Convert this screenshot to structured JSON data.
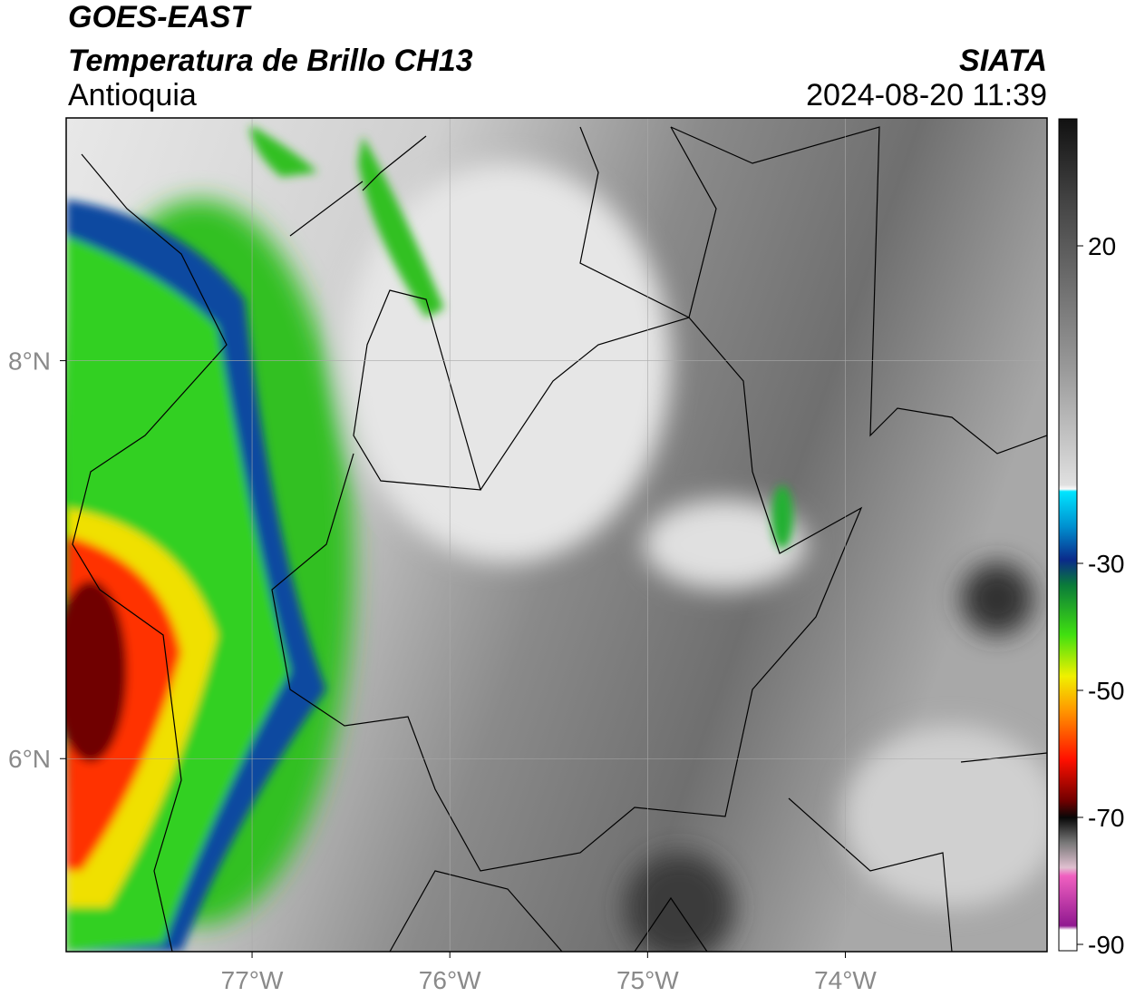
{
  "header": {
    "satellite": "GOES-EAST",
    "product": "Temperatura de Brillo CH13",
    "region": "Antioquia",
    "source": "SIATA",
    "datetime": "2024-08-20 11:39"
  },
  "map": {
    "xlim": [
      -77.94,
      -72.98
    ],
    "ylim": [
      5.03,
      9.22
    ],
    "xticks": [
      {
        "value": -77,
        "label": "77°W"
      },
      {
        "value": -76,
        "label": "76°W"
      },
      {
        "value": -75,
        "label": "75°W"
      },
      {
        "value": -74,
        "label": "74°W"
      }
    ],
    "yticks": [
      {
        "value": 8,
        "label": "8°N"
      },
      {
        "value": 6,
        "label": "6°N"
      }
    ]
  },
  "colorbar": {
    "range": [
      -91,
      40
    ],
    "ticks": [
      20,
      -30,
      -50,
      -70,
      -90
    ]
  }
}
